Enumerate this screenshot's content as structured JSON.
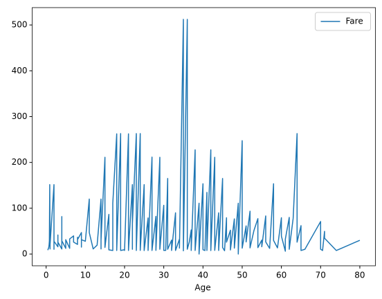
{
  "chart_data": {
    "type": "line",
    "xlabel": "Age",
    "x": [
      0.42,
      0.67,
      0.75,
      0.83,
      0.92,
      1,
      1,
      1,
      2,
      2,
      2,
      2,
      3,
      3,
      3,
      4,
      4,
      4,
      4,
      5,
      5,
      6,
      6,
      7,
      7,
      8,
      8,
      8,
      9,
      9,
      9,
      10,
      11,
      11,
      12,
      13,
      14,
      14,
      14,
      15,
      15,
      16,
      16,
      17,
      17,
      18,
      18,
      18,
      19,
      19,
      19,
      20,
      20,
      21,
      21,
      21,
      22,
      22,
      22,
      23,
      23,
      23,
      24,
      24,
      24,
      25,
      25,
      25,
      26,
      26,
      27,
      27,
      27,
      28,
      28,
      29,
      29,
      30,
      30,
      30.5,
      31,
      31,
      32,
      32,
      33,
      33,
      34,
      34,
      35,
      35,
      36,
      36,
      36.5,
      37,
      37,
      38,
      38,
      39,
      39,
      40,
      40,
      40.5,
      41,
      41,
      42,
      42,
      43,
      43,
      44,
      44,
      45,
      45,
      45.5,
      46,
      46,
      47,
      47,
      48,
      48,
      49,
      49,
      50,
      50,
      51,
      51,
      52,
      52,
      53,
      54,
      54,
      55,
      55,
      56,
      56,
      57,
      58,
      58,
      59,
      60,
      60,
      61,
      61,
      62,
      62,
      63,
      64,
      64,
      65,
      65,
      66,
      70,
      70,
      70.5,
      71,
      71,
      74,
      80
    ],
    "series": [
      {
        "name": "Fare",
        "color": "#1f77b4",
        "values": [
          8.5,
          14.5,
          19.3,
          29,
          151.5,
          11.1,
          39,
          20.6,
          151.5,
          10.5,
          29,
          27.9,
          15.9,
          41.6,
          26,
          11.1,
          81.9,
          16.7,
          29.1,
          12.5,
          31.4,
          12.5,
          33,
          39.7,
          26.2,
          21,
          36.75,
          31.4,
          46.9,
          15.2,
          31.4,
          27.9,
          120,
          46.9,
          11.2,
          19.5,
          120,
          11.2,
          30.1,
          211.3,
          14.5,
          86.5,
          9.2,
          7.9,
          110.9,
          262.4,
          11.5,
          7.8,
          263,
          10.5,
          7.9,
          9.5,
          7.9,
          262.4,
          77.3,
          7.8,
          151.5,
          10.5,
          66.6,
          263,
          13,
          7.9,
          263,
          69.3,
          8.1,
          151.5,
          26,
          7.7,
          78.85,
          7.9,
          211.5,
          53.1,
          7.9,
          82.2,
          8.05,
          211.3,
          10.5,
          106.4,
          8.05,
          8.05,
          164.9,
          10.5,
          30.5,
          7.9,
          90,
          7.8,
          32.5,
          13,
          512.3,
          7.05,
          512.3,
          10.5,
          26,
          52.55,
          7.9,
          227.5,
          7.9,
          110.9,
          0,
          153.5,
          9.5,
          7.75,
          134.5,
          7.8,
          227.5,
          7.65,
          211.3,
          8.05,
          90,
          7.9,
          164.9,
          14.5,
          7.2,
          79.2,
          26,
          52,
          9,
          76.7,
          13,
          110.9,
          0,
          247.5,
          13,
          61.4,
          26.5,
          93.5,
          13.5,
          51.5,
          77.3,
          14,
          30.5,
          16,
          83.2,
          26.55,
          12.35,
          153.5,
          29.7,
          13.5,
          79.2,
          39,
          6.2,
          32.3,
          80,
          10.5,
          77.96,
          263,
          26,
          61.98,
          7.75,
          10.5,
          71,
          10.5,
          7.75,
          49.5,
          34.65,
          7.775,
          30
        ]
      }
    ],
    "xlim": [
      -3.56,
      83.98
    ],
    "ylim": [
      -25.6,
      537.9
    ],
    "xticks": [
      0,
      10,
      20,
      30,
      40,
      50,
      60,
      70,
      80
    ],
    "yticks": [
      0,
      100,
      200,
      300,
      400,
      500
    ],
    "legend": "upper right"
  }
}
